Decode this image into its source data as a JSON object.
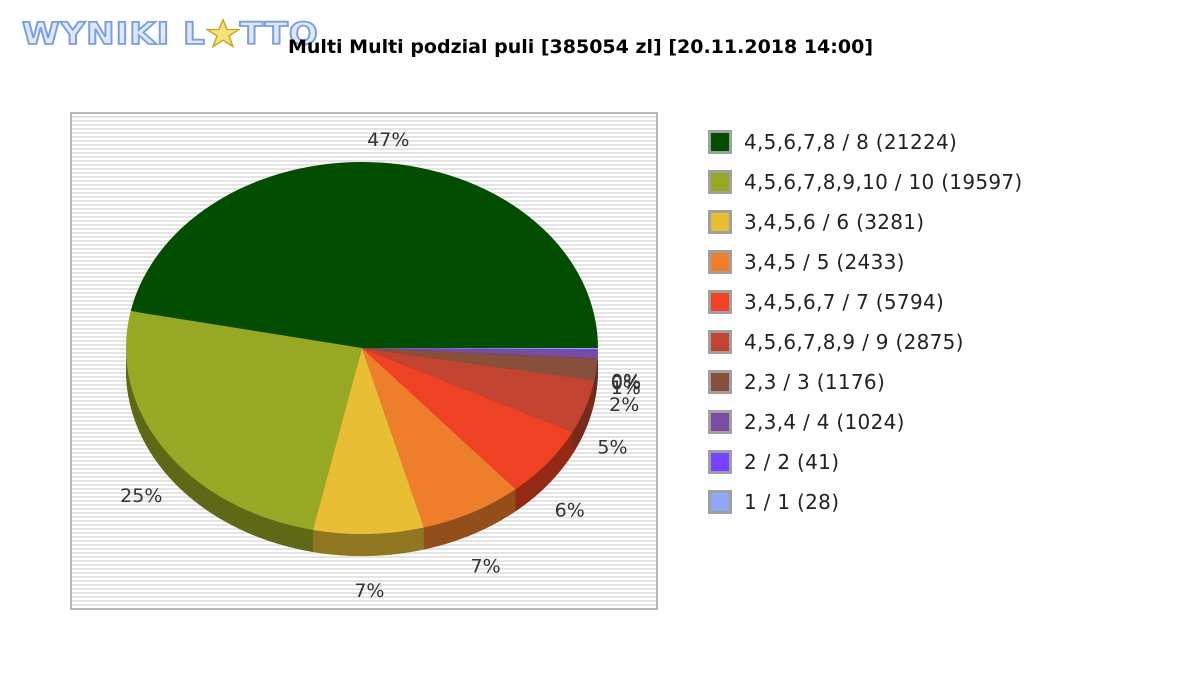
{
  "logo": {
    "text_before": "WYNIKI L",
    "text_after": "TTO"
  },
  "chart_data": {
    "type": "pie",
    "title": "Multi Multi podzial puli [385054 zl] [20.11.2018 14:00]",
    "slices": [
      {
        "label": "4,5,6,7,8 / 8 (21224)",
        "value": 21224,
        "percent_label": "47%",
        "color": "#024d00"
      },
      {
        "label": "4,5,6,7,8,9,10 / 10 (19597)",
        "value": 19597,
        "percent_label": "25%",
        "color": "#97a825"
      },
      {
        "label": "3,4,5,6 / 6 (3281)",
        "value": 3281,
        "percent_label": "7%",
        "color": "#e8be35"
      },
      {
        "label": "3,4,5 / 5 (2433)",
        "value": 2433,
        "percent_label": "7%",
        "color": "#ee7d2c"
      },
      {
        "label": "3,4,5,6,7 / 7 (5794)",
        "value": 5794,
        "percent_label": "6%",
        "color": "#ef4224"
      },
      {
        "label": "4,5,6,7,8,9 / 9 (2875)",
        "value": 2875,
        "percent_label": "5%",
        "color": "#c2432f"
      },
      {
        "label": "2,3 / 3 (1176)",
        "value": 1176,
        "percent_label": "2%",
        "color": "#88503c"
      },
      {
        "label": "2,3,4 / 4 (1024)",
        "value": 1024,
        "percent_label": "1%",
        "color": "#7b4aa3"
      },
      {
        "label": "2 / 2 (41)",
        "value": 41,
        "percent_label": "0%",
        "color": "#7443ff"
      },
      {
        "label": "1 / 1 (28)",
        "value": 28,
        "percent_label": "0%",
        "color": "#8fa7f5"
      }
    ],
    "pie_percentages": [
      47.1,
      25.0,
      7.6,
      7.1,
      6.3,
      4.7,
      1.9,
      0.7,
      0.1,
      0.1
    ],
    "legend_position": "right",
    "plot_background": "striped-gray"
  }
}
